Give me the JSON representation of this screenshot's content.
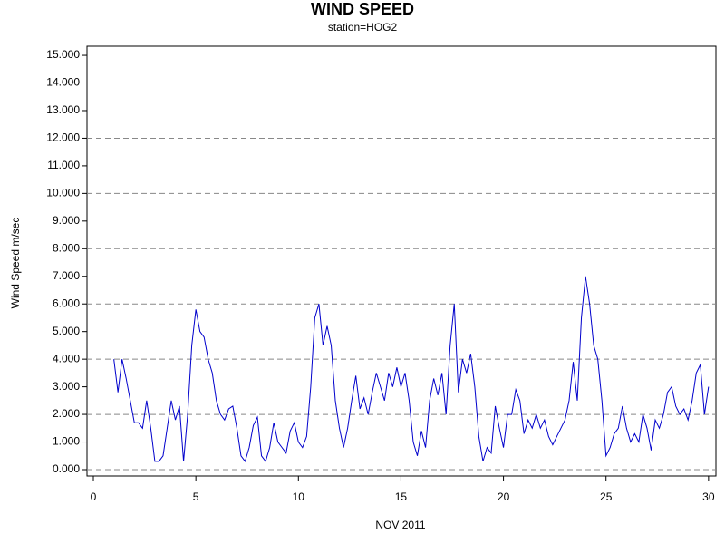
{
  "chart_data": {
    "type": "line",
    "title": "WIND SPEED",
    "subtitle": "station=HOG2",
    "x_label": "NOV 2011",
    "y_label": "Wind Speed m/sec",
    "x": [
      1.0,
      1.2,
      1.4,
      1.6,
      1.8,
      2.0,
      2.2,
      2.4,
      2.6,
      2.8,
      3.0,
      3.2,
      3.4,
      3.6,
      3.8,
      4.0,
      4.2,
      4.4,
      4.6,
      4.8,
      5.0,
      5.2,
      5.4,
      5.6,
      5.8,
      6.0,
      6.2,
      6.4,
      6.6,
      6.8,
      7.0,
      7.2,
      7.4,
      7.6,
      7.8,
      8.0,
      8.2,
      8.4,
      8.6,
      8.8,
      9.0,
      9.2,
      9.4,
      9.6,
      9.8,
      10.0,
      10.2,
      10.4,
      10.6,
      10.8,
      11.0,
      11.2,
      11.4,
      11.6,
      11.8,
      12.0,
      12.2,
      12.4,
      12.6,
      12.8,
      13.0,
      13.2,
      13.4,
      13.6,
      13.8,
      14.0,
      14.2,
      14.4,
      14.6,
      14.8,
      15.0,
      15.2,
      15.4,
      15.6,
      15.8,
      16.0,
      16.2,
      16.4,
      16.6,
      16.8,
      17.0,
      17.2,
      17.4,
      17.6,
      17.8,
      18.0,
      18.2,
      18.4,
      18.6,
      18.8,
      19.0,
      19.2,
      19.4,
      19.6,
      19.8,
      20.0,
      20.2,
      20.4,
      20.6,
      20.8,
      21.0,
      21.2,
      21.4,
      21.6,
      21.8,
      22.0,
      22.2,
      22.4,
      22.6,
      22.8,
      23.0,
      23.2,
      23.4,
      23.6,
      23.8,
      24.0,
      24.2,
      24.4,
      24.6,
      24.8,
      25.0,
      25.2,
      25.4,
      25.6,
      25.8,
      26.0,
      26.2,
      26.4,
      26.6,
      26.8,
      27.0,
      27.2,
      27.4,
      27.6,
      27.8,
      28.0,
      28.2,
      28.4,
      28.6,
      28.8,
      29.0,
      29.2,
      29.4,
      29.6,
      29.8,
      30.0
    ],
    "series": [
      {
        "name": "Wind Speed",
        "color": "#0000cc",
        "values": [
          4.0,
          2.8,
          4.0,
          3.3,
          2.5,
          1.7,
          1.7,
          1.5,
          2.5,
          1.5,
          0.3,
          0.3,
          0.5,
          1.5,
          2.5,
          1.8,
          2.3,
          0.3,
          2.0,
          4.5,
          5.8,
          5.0,
          4.8,
          4.0,
          3.5,
          2.5,
          2.0,
          1.8,
          2.2,
          2.3,
          1.5,
          0.5,
          0.3,
          0.8,
          1.6,
          1.9,
          0.5,
          0.3,
          0.8,
          1.7,
          1.0,
          0.8,
          0.6,
          1.4,
          1.7,
          1.0,
          0.8,
          1.2,
          3.0,
          5.5,
          6.0,
          4.5,
          5.2,
          4.5,
          2.5,
          1.5,
          0.8,
          1.5,
          2.5,
          3.4,
          2.2,
          2.6,
          2.0,
          2.8,
          3.5,
          3.0,
          2.5,
          3.5,
          3.0,
          3.7,
          3.0,
          3.5,
          2.5,
          1.0,
          0.5,
          1.4,
          0.8,
          2.5,
          3.3,
          2.7,
          3.5,
          2.0,
          4.5,
          6.0,
          2.8,
          4.0,
          3.5,
          4.2,
          3.0,
          1.2,
          0.3,
          0.8,
          0.6,
          2.3,
          1.5,
          0.8,
          2.0,
          2.0,
          2.9,
          2.5,
          1.3,
          1.8,
          1.5,
          2.0,
          1.5,
          1.8,
          1.2,
          0.9,
          1.2,
          1.5,
          1.8,
          2.5,
          3.9,
          2.5,
          5.5,
          7.0,
          6.0,
          4.5,
          4.0,
          2.5,
          0.5,
          0.8,
          1.3,
          1.5,
          2.3,
          1.5,
          1.0,
          1.3,
          1.0,
          2.0,
          1.5,
          0.7,
          1.8,
          1.5,
          2.0,
          2.8,
          3.0,
          2.3,
          2.0,
          2.2,
          1.8,
          2.5,
          3.5,
          3.8,
          2.0,
          3.0
        ]
      }
    ],
    "xlim": [
      -0.31,
      30.36
    ],
    "xticks": [
      0,
      5,
      10,
      15,
      20,
      25,
      30
    ],
    "ylim": [
      -0.23,
      15.33
    ],
    "yticks": [
      {
        "value": 0,
        "label": "0.000"
      },
      {
        "value": 1,
        "label": "1.000"
      },
      {
        "value": 2,
        "label": "2.000"
      },
      {
        "value": 3,
        "label": "3.000"
      },
      {
        "value": 4,
        "label": "4.000"
      },
      {
        "value": 5,
        "label": "5.000"
      },
      {
        "value": 6,
        "label": "6.000"
      },
      {
        "value": 7,
        "label": "7.000"
      },
      {
        "value": 8,
        "label": "8.000"
      },
      {
        "value": 9,
        "label": "9.000"
      },
      {
        "value": 10,
        "label": "10.000"
      },
      {
        "value": 11,
        "label": "11.000"
      },
      {
        "value": 12,
        "label": "12.000"
      },
      {
        "value": 13,
        "label": "13.000"
      },
      {
        "value": 14,
        "label": "14.000"
      },
      {
        "value": 15,
        "label": "15.000"
      }
    ],
    "grid_every": 2,
    "grid": true
  }
}
